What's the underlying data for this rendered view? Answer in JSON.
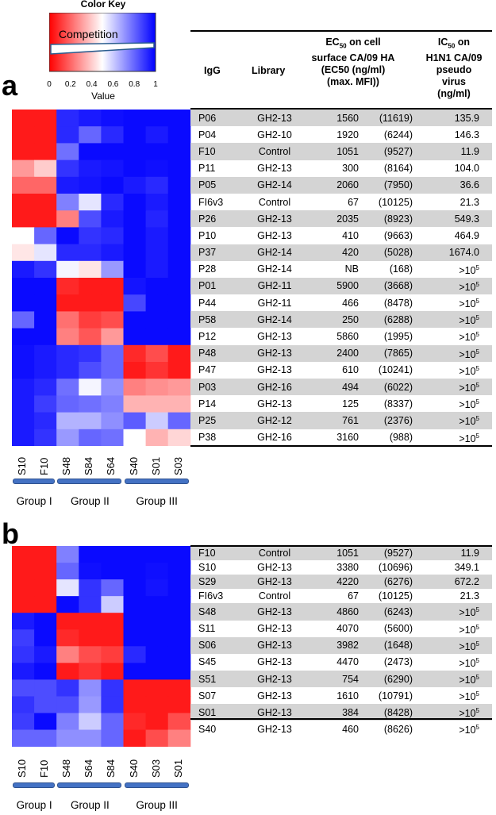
{
  "color_key": {
    "title": "Color Key",
    "legend_label": "Competition",
    "axis_label": "Value",
    "ticks": [
      "0",
      "0.2",
      "0.4",
      "0.6",
      "0.8",
      "1"
    ],
    "colors": {
      "low": "#ff0000",
      "mid": "#ffffff",
      "high": "#0000ff"
    }
  },
  "headers": {
    "igg": "IgG",
    "library": "Library",
    "ec50_sub": "50",
    "ec50_line1": "EC",
    "ec50_line1b": " on cell",
    "ec50_line2": "surface CA/09 HA",
    "ec50_line3": "(EC50 (ng/ml)",
    "ec50_line4": "(max. MFI))",
    "ic50_line1": "IC",
    "ic50_sub": "50",
    "ic50_line1b": " on",
    "ic50_line2": "H1N1 CA/09",
    "ic50_line3": "pseudo",
    "ic50_line4": "virus",
    "ic50_line5": "(ng/ml)"
  },
  "panel_a": {
    "letter": "a",
    "columns": [
      "S10",
      "F10",
      "S48",
      "S84",
      "S64",
      "S40",
      "S01",
      "S03"
    ],
    "groups": [
      {
        "label": "Group I",
        "span": 2
      },
      {
        "label": "Group II",
        "span": 3
      },
      {
        "label": "Group III",
        "span": 3
      }
    ],
    "rows": [
      {
        "id": "P06",
        "library": "GH2-13",
        "ec50": "1560",
        "mfi": "(11619)",
        "ic50": "135.9",
        "ic50_exp": ""
      },
      {
        "id": "P04",
        "library": "GH2-10",
        "ec50": "1920",
        "mfi": "(6244)",
        "ic50": "146.3",
        "ic50_exp": ""
      },
      {
        "id": "F10",
        "library": "Control",
        "ec50": "1051",
        "mfi": "(9527)",
        "ic50": "11.9",
        "ic50_exp": ""
      },
      {
        "id": "P11",
        "library": "GH2-13",
        "ec50": "300",
        "mfi": "(8164)",
        "ic50": "104.0",
        "ic50_exp": ""
      },
      {
        "id": "P05",
        "library": "GH2-14",
        "ec50": "2060",
        "mfi": "(7950)",
        "ic50": "36.6",
        "ic50_exp": ""
      },
      {
        "id": "FI6v3",
        "library": "Control",
        "ec50": "67",
        "mfi": "(10125)",
        "ic50": "21.3",
        "ic50_exp": ""
      },
      {
        "id": "P26",
        "library": "GH2-13",
        "ec50": "2035",
        "mfi": "(8923)",
        "ic50": "549.3",
        "ic50_exp": ""
      },
      {
        "id": "P10",
        "library": "GH2-13",
        "ec50": "410",
        "mfi": "(9663)",
        "ic50": "464.9",
        "ic50_exp": ""
      },
      {
        "id": "P37",
        "library": "GH2-14",
        "ec50": "420",
        "mfi": "(5028)",
        "ic50": "1674.0",
        "ic50_exp": ""
      },
      {
        "id": "P28",
        "library": "GH2-14",
        "ec50": "NB",
        "mfi": "(168)",
        "ic50": ">10",
        "ic50_exp": "5"
      },
      {
        "id": "P01",
        "library": "GH2-11",
        "ec50": "5900",
        "mfi": "(3668)",
        "ic50": ">10",
        "ic50_exp": "5"
      },
      {
        "id": "P44",
        "library": "GH2-11",
        "ec50": "466",
        "mfi": "(8478)",
        "ic50": ">10",
        "ic50_exp": "5"
      },
      {
        "id": "P58",
        "library": "GH2-14",
        "ec50": "250",
        "mfi": "(6288)",
        "ic50": ">10",
        "ic50_exp": "5"
      },
      {
        "id": "P12",
        "library": "GH2-13",
        "ec50": "5860",
        "mfi": "(1995)",
        "ic50": ">10",
        "ic50_exp": "5"
      },
      {
        "id": "P48",
        "library": "GH2-13",
        "ec50": "2400",
        "mfi": "(7865)",
        "ic50": ">10",
        "ic50_exp": "5"
      },
      {
        "id": "P47",
        "library": "GH2-13",
        "ec50": "610",
        "mfi": "(10241)",
        "ic50": ">10",
        "ic50_exp": "5"
      },
      {
        "id": "P03",
        "library": "GH2-16",
        "ec50": "494",
        "mfi": "(6022)",
        "ic50": ">10",
        "ic50_exp": "5"
      },
      {
        "id": "P14",
        "library": "GH2-13",
        "ec50": "125",
        "mfi": "(8337)",
        "ic50": ">10",
        "ic50_exp": "5"
      },
      {
        "id": "P25",
        "library": "GH2-12",
        "ec50": "761",
        "mfi": "(2376)",
        "ic50": ">10",
        "ic50_exp": "5"
      },
      {
        "id": "P38",
        "library": "GH2-16",
        "ec50": "3160",
        "mfi": "(988)",
        "ic50": ">10",
        "ic50_exp": "5"
      }
    ]
  },
  "panel_b": {
    "letter": "b",
    "columns": [
      "S10",
      "F10",
      "S48",
      "S64",
      "S84",
      "S40",
      "S03",
      "S01"
    ],
    "groups": [
      {
        "label": "Group I",
        "span": 2
      },
      {
        "label": "Group II",
        "span": 3
      },
      {
        "label": "Group III",
        "span": 3
      }
    ],
    "rows": [
      {
        "id": "F10",
        "library": "Control",
        "ec50": "1051",
        "mfi": "(9527)",
        "ic50": "11.9",
        "ic50_exp": ""
      },
      {
        "id": "S10",
        "library": "GH2-13",
        "ec50": "3380",
        "mfi": "(10696)",
        "ic50": "349.1",
        "ic50_exp": ""
      },
      {
        "id": "S29",
        "library": "GH2-13",
        "ec50": "4220",
        "mfi": "(6276)",
        "ic50": "672.2",
        "ic50_exp": ""
      },
      {
        "id": "FI6v3",
        "library": "Control",
        "ec50": "67",
        "mfi": "(10125)",
        "ic50": "21.3",
        "ic50_exp": ""
      },
      {
        "id": "S48",
        "library": "GH2-13",
        "ec50": "4860",
        "mfi": "(6243)",
        "ic50": ">10",
        "ic50_exp": "5"
      },
      {
        "id": "S11",
        "library": "GH2-13",
        "ec50": "4070",
        "mfi": "(5600)",
        "ic50": ">10",
        "ic50_exp": "5"
      },
      {
        "id": "S06",
        "library": "GH2-13",
        "ec50": "3982",
        "mfi": "(1648)",
        "ic50": ">10",
        "ic50_exp": "5"
      },
      {
        "id": "S45",
        "library": "GH2-13",
        "ec50": "4470",
        "mfi": "(2473)",
        "ic50": ">10",
        "ic50_exp": "5"
      },
      {
        "id": "S51",
        "library": "GH2-13",
        "ec50": "754",
        "mfi": "(6290)",
        "ic50": ">10",
        "ic50_exp": "5"
      },
      {
        "id": "S07",
        "library": "GH2-13",
        "ec50": "1610",
        "mfi": "(10791)",
        "ic50": ">10",
        "ic50_exp": "5"
      },
      {
        "id": "S01",
        "library": "GH2-13",
        "ec50": "384",
        "mfi": "(8428)",
        "ic50": ">10",
        "ic50_exp": "5"
      },
      {
        "id": "S40",
        "library": "GH2-13",
        "ec50": "460",
        "mfi": "(8626)",
        "ic50": ">10",
        "ic50_exp": "5"
      }
    ]
  },
  "chart_data": [
    {
      "type": "heatmap",
      "panel": "a",
      "x": [
        "S10",
        "F10",
        "S48",
        "S84",
        "S64",
        "S40",
        "S01",
        "S03"
      ],
      "y": [
        "P06",
        "P04",
        "F10",
        "P11",
        "P05",
        "FI6v3",
        "P26",
        "P10",
        "P37",
        "P28",
        "P01",
        "P44",
        "P58",
        "P12",
        "P48",
        "P47",
        "P03",
        "P14",
        "P25",
        "P38"
      ],
      "zlim": [
        0,
        1
      ],
      "values": [
        [
          0.05,
          0.05,
          0.92,
          0.95,
          0.97,
          0.98,
          0.98,
          0.98
        ],
        [
          0.05,
          0.05,
          0.92,
          0.8,
          0.92,
          0.98,
          0.95,
          0.98
        ],
        [
          0.05,
          0.05,
          0.78,
          0.98,
          0.98,
          0.98,
          0.98,
          0.98
        ],
        [
          0.3,
          0.4,
          0.9,
          0.95,
          0.96,
          0.98,
          0.97,
          0.98
        ],
        [
          0.2,
          0.2,
          0.95,
          0.96,
          0.98,
          0.95,
          0.92,
          0.98
        ],
        [
          0.05,
          0.05,
          0.75,
          0.55,
          0.92,
          0.98,
          0.95,
          0.98
        ],
        [
          0.05,
          0.05,
          0.25,
          0.85,
          0.95,
          0.98,
          0.93,
          0.98
        ],
        [
          0.5,
          0.8,
          0.98,
          0.9,
          0.92,
          0.98,
          0.95,
          0.98
        ],
        [
          0.45,
          0.55,
          0.92,
          0.92,
          0.95,
          0.98,
          0.95,
          0.98
        ],
        [
          0.95,
          0.9,
          0.52,
          0.45,
          0.7,
          0.98,
          0.95,
          0.98
        ],
        [
          0.98,
          0.98,
          0.08,
          0.05,
          0.05,
          0.96,
          0.98,
          0.98
        ],
        [
          0.98,
          0.98,
          0.05,
          0.05,
          0.05,
          0.86,
          0.98,
          0.98
        ],
        [
          0.8,
          0.98,
          0.22,
          0.12,
          0.15,
          0.98,
          0.98,
          0.98
        ],
        [
          0.98,
          0.98,
          0.25,
          0.17,
          0.3,
          0.98,
          0.98,
          0.98
        ],
        [
          0.97,
          0.95,
          0.92,
          0.9,
          0.8,
          0.08,
          0.15,
          0.05
        ],
        [
          0.97,
          0.95,
          0.92,
          0.85,
          0.8,
          0.05,
          0.1,
          0.05
        ],
        [
          0.95,
          0.92,
          0.78,
          0.52,
          0.72,
          0.25,
          0.28,
          0.3
        ],
        [
          0.95,
          0.88,
          0.8,
          0.78,
          0.75,
          0.35,
          0.35,
          0.35
        ],
        [
          0.95,
          0.92,
          0.65,
          0.65,
          0.72,
          0.82,
          0.6,
          0.8
        ],
        [
          0.95,
          0.9,
          0.7,
          0.8,
          0.78,
          0.5,
          0.35,
          0.42
        ]
      ]
    },
    {
      "type": "heatmap",
      "panel": "b",
      "x": [
        "S10",
        "F10",
        "S48",
        "S64",
        "S84",
        "S40",
        "S03",
        "S01"
      ],
      "y": [
        "F10",
        "S10",
        "S29",
        "FI6v3",
        "S48",
        "S11",
        "S06",
        "S45",
        "S51",
        "S07",
        "S01",
        "S40"
      ],
      "zlim": [
        0,
        1
      ],
      "values": [
        [
          0.05,
          0.05,
          0.75,
          0.98,
          0.98,
          0.98,
          0.98,
          0.98
        ],
        [
          0.05,
          0.05,
          0.8,
          0.97,
          0.98,
          0.98,
          0.97,
          0.98
        ],
        [
          0.05,
          0.05,
          0.55,
          0.9,
          0.8,
          0.98,
          0.96,
          0.98
        ],
        [
          0.05,
          0.05,
          0.98,
          0.9,
          0.6,
          0.98,
          0.98,
          0.98
        ],
        [
          0.95,
          0.98,
          0.05,
          0.05,
          0.05,
          0.98,
          0.98,
          0.98
        ],
        [
          0.88,
          0.98,
          0.08,
          0.05,
          0.05,
          0.98,
          0.98,
          0.98
        ],
        [
          0.9,
          0.95,
          0.25,
          0.15,
          0.12,
          0.92,
          0.98,
          0.98
        ],
        [
          0.95,
          0.98,
          0.05,
          0.1,
          0.05,
          0.98,
          0.98,
          0.98
        ],
        [
          0.85,
          0.85,
          0.9,
          0.72,
          0.9,
          0.05,
          0.05,
          0.05
        ],
        [
          0.9,
          0.85,
          0.85,
          0.7,
          0.9,
          0.05,
          0.05,
          0.05
        ],
        [
          0.88,
          0.98,
          0.75,
          0.6,
          0.8,
          0.08,
          0.05,
          0.15
        ],
        [
          0.8,
          0.8,
          0.72,
          0.72,
          0.8,
          0.05,
          0.15,
          0.25
        ]
      ]
    }
  ]
}
